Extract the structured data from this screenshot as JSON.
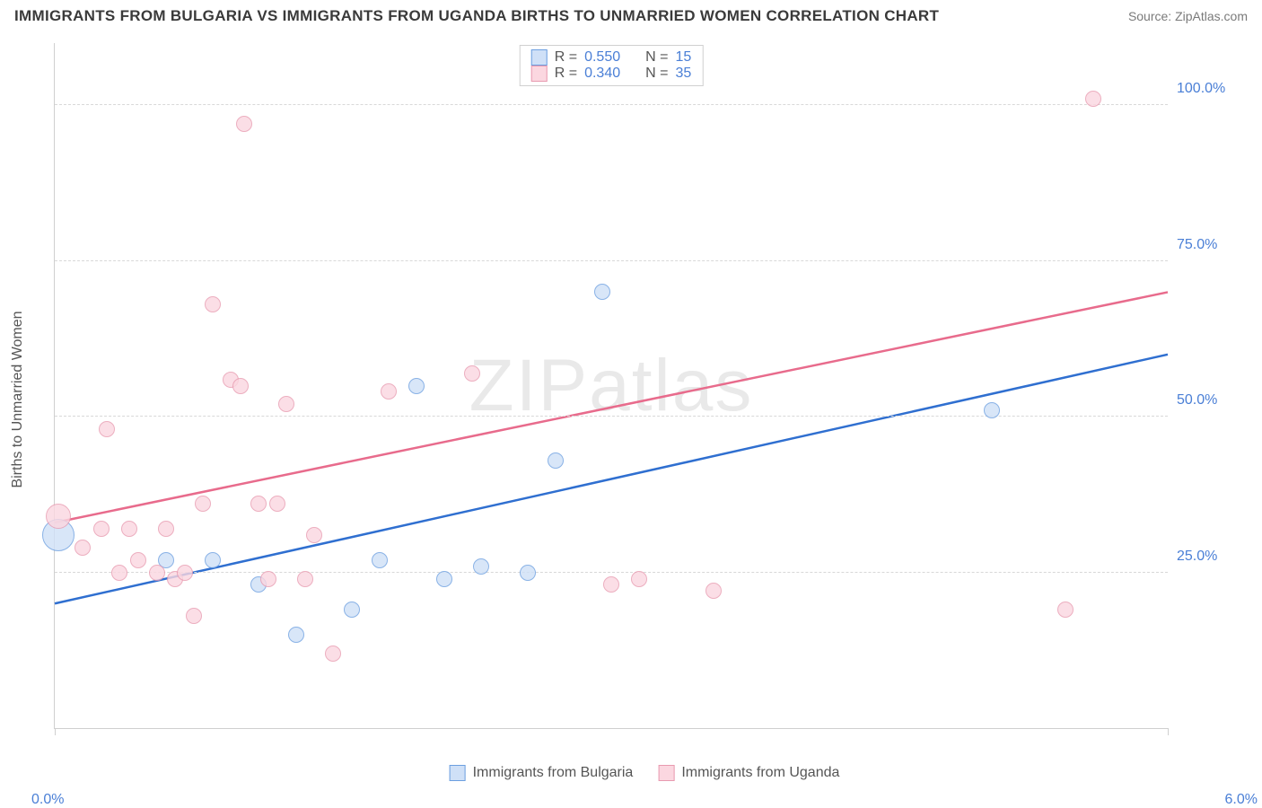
{
  "header": {
    "title": "IMMIGRANTS FROM BULGARIA VS IMMIGRANTS FROM UGANDA BIRTHS TO UNMARRIED WOMEN CORRELATION CHART",
    "source": "Source: ZipAtlas.com"
  },
  "watermark": "ZIPatlas",
  "chart": {
    "type": "scatter",
    "background_color": "#ffffff",
    "grid_color": "#d8d8d8",
    "xlim": [
      0,
      6
    ],
    "ylim": [
      0,
      110
    ],
    "x_ticks": [
      0,
      6
    ],
    "x_tick_labels": [
      "0.0%",
      "6.0%"
    ],
    "y_ticks": [
      25,
      50,
      75,
      100
    ],
    "y_tick_labels": [
      "25.0%",
      "50.0%",
      "75.0%",
      "100.0%"
    ],
    "y_axis_title": "Births to Unmarried Women",
    "marker_radius": 9,
    "series": [
      {
        "key": "bulgaria",
        "label": "Immigrants from Bulgaria",
        "fill": "#cfe0f7",
        "stroke": "#6c9fe0",
        "stat_r": "0.550",
        "stat_n": "15",
        "trend": {
          "x1": 0.0,
          "y1": 20.0,
          "x2": 6.0,
          "y2": 60.0,
          "color": "#2f6fd0",
          "width": 2.5
        },
        "points": [
          {
            "x": 0.02,
            "y": 31,
            "r": 18
          },
          {
            "x": 0.6,
            "y": 27
          },
          {
            "x": 0.85,
            "y": 27
          },
          {
            "x": 1.1,
            "y": 23
          },
          {
            "x": 1.3,
            "y": 15
          },
          {
            "x": 1.6,
            "y": 19
          },
          {
            "x": 1.75,
            "y": 27
          },
          {
            "x": 1.95,
            "y": 55
          },
          {
            "x": 2.1,
            "y": 24
          },
          {
            "x": 2.3,
            "y": 26
          },
          {
            "x": 2.55,
            "y": 25
          },
          {
            "x": 2.7,
            "y": 43
          },
          {
            "x": 2.95,
            "y": 70
          },
          {
            "x": 5.05,
            "y": 51
          }
        ]
      },
      {
        "key": "uganda",
        "label": "Immigrants from Uganda",
        "fill": "#fbd7e0",
        "stroke": "#e89ab0",
        "stat_r": "0.340",
        "stat_n": "35",
        "trend": {
          "x1": 0.0,
          "y1": 33.0,
          "x2": 6.0,
          "y2": 70.0,
          "color": "#e86b8c",
          "width": 2.5
        },
        "points": [
          {
            "x": 0.02,
            "y": 34,
            "r": 14
          },
          {
            "x": 0.15,
            "y": 29
          },
          {
            "x": 0.25,
            "y": 32
          },
          {
            "x": 0.28,
            "y": 48
          },
          {
            "x": 0.35,
            "y": 25
          },
          {
            "x": 0.4,
            "y": 32
          },
          {
            "x": 0.45,
            "y": 27
          },
          {
            "x": 0.55,
            "y": 25
          },
          {
            "x": 0.6,
            "y": 32
          },
          {
            "x": 0.65,
            "y": 24
          },
          {
            "x": 0.7,
            "y": 25
          },
          {
            "x": 0.75,
            "y": 18
          },
          {
            "x": 0.8,
            "y": 36
          },
          {
            "x": 0.85,
            "y": 68
          },
          {
            "x": 0.95,
            "y": 56
          },
          {
            "x": 1.0,
            "y": 55
          },
          {
            "x": 1.02,
            "y": 97
          },
          {
            "x": 1.1,
            "y": 36
          },
          {
            "x": 1.15,
            "y": 24
          },
          {
            "x": 1.2,
            "y": 36
          },
          {
            "x": 1.25,
            "y": 52
          },
          {
            "x": 1.35,
            "y": 24
          },
          {
            "x": 1.4,
            "y": 31
          },
          {
            "x": 1.5,
            "y": 12
          },
          {
            "x": 1.8,
            "y": 54
          },
          {
            "x": 2.25,
            "y": 57
          },
          {
            "x": 3.0,
            "y": 23
          },
          {
            "x": 3.15,
            "y": 24
          },
          {
            "x": 3.55,
            "y": 22
          },
          {
            "x": 5.45,
            "y": 19
          },
          {
            "x": 5.6,
            "y": 101
          }
        ]
      }
    ],
    "legend_top": {
      "r_label": "R =",
      "n_label": "N ="
    }
  }
}
